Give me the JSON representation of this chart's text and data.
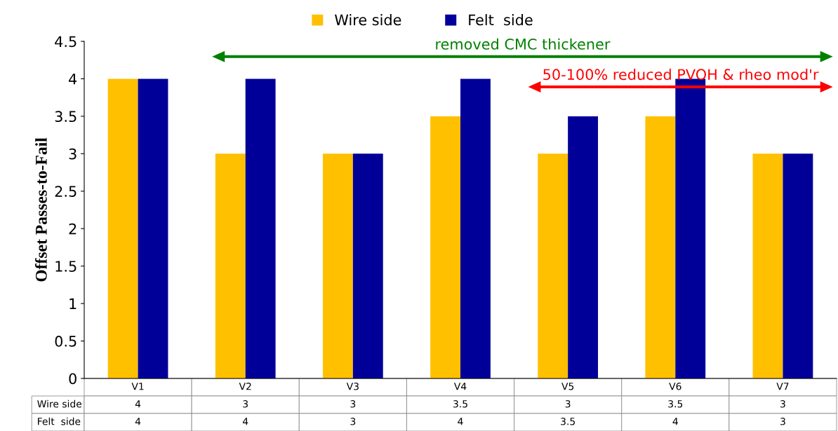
{
  "chart_data": {
    "type": "bar",
    "ylabel": "Offset Passes-to-Fail",
    "categories": [
      "V1",
      "V2",
      "V3",
      "V4",
      "V5",
      "V6",
      "V7"
    ],
    "series": [
      {
        "name": "Wire side",
        "color": "#ffc000",
        "values": [
          4,
          3,
          3,
          3.5,
          3,
          3.5,
          3
        ]
      },
      {
        "name": "Felt  side",
        "color": "#000099",
        "values": [
          4,
          4,
          3,
          4,
          3.5,
          4,
          3
        ]
      }
    ],
    "ylim": [
      0,
      4.5
    ],
    "yticks": [
      0,
      0.5,
      1,
      1.5,
      2,
      2.5,
      3,
      3.5,
      4,
      4.5
    ],
    "grid": false,
    "legend": "top",
    "data_labels": true,
    "annotations": [
      "removed CMC thickener",
      "50-100% reduced PVOH & rheo mod'r"
    ]
  }
}
